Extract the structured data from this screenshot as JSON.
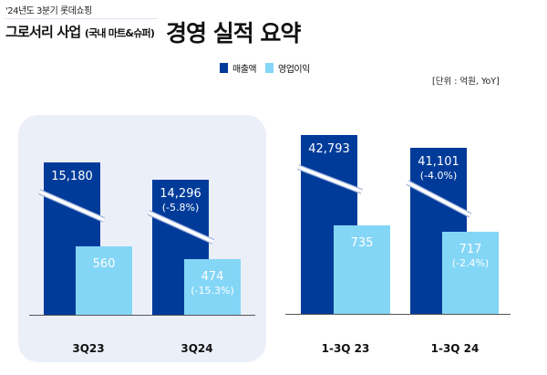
{
  "header": {
    "company": "'24년도 3분기 롯데쇼핑",
    "business": "그로서리 사업",
    "business_sub": "(국내 마트&슈퍼)",
    "title": "경영 실적 요약",
    "unit": "[단위 : 억원,  YoY]"
  },
  "chart_data": {
    "type": "bar",
    "title": "경영 실적 요약",
    "categories": [
      "3Q23",
      "3Q24",
      "1-3Q 23",
      "1-3Q 24"
    ],
    "axis_break": true,
    "legend_placement": "top-center",
    "series": [
      {
        "name": "매출액",
        "color": "#003b9a",
        "values": [
          15180,
          14296,
          42793,
          41101
        ],
        "labels": [
          "15,180",
          "14,296",
          "42,793",
          "41,101"
        ],
        "yoy": [
          "",
          "(-5.8%)",
          "",
          "(-4.0%)"
        ]
      },
      {
        "name": "영업이익",
        "color": "#84d6f6",
        "values": [
          560,
          474,
          735,
          717
        ],
        "labels": [
          "560",
          "474",
          "735",
          "717"
        ],
        "yoy": [
          "",
          "(-15.3%)",
          "",
          "(-2.4%)"
        ]
      }
    ]
  }
}
